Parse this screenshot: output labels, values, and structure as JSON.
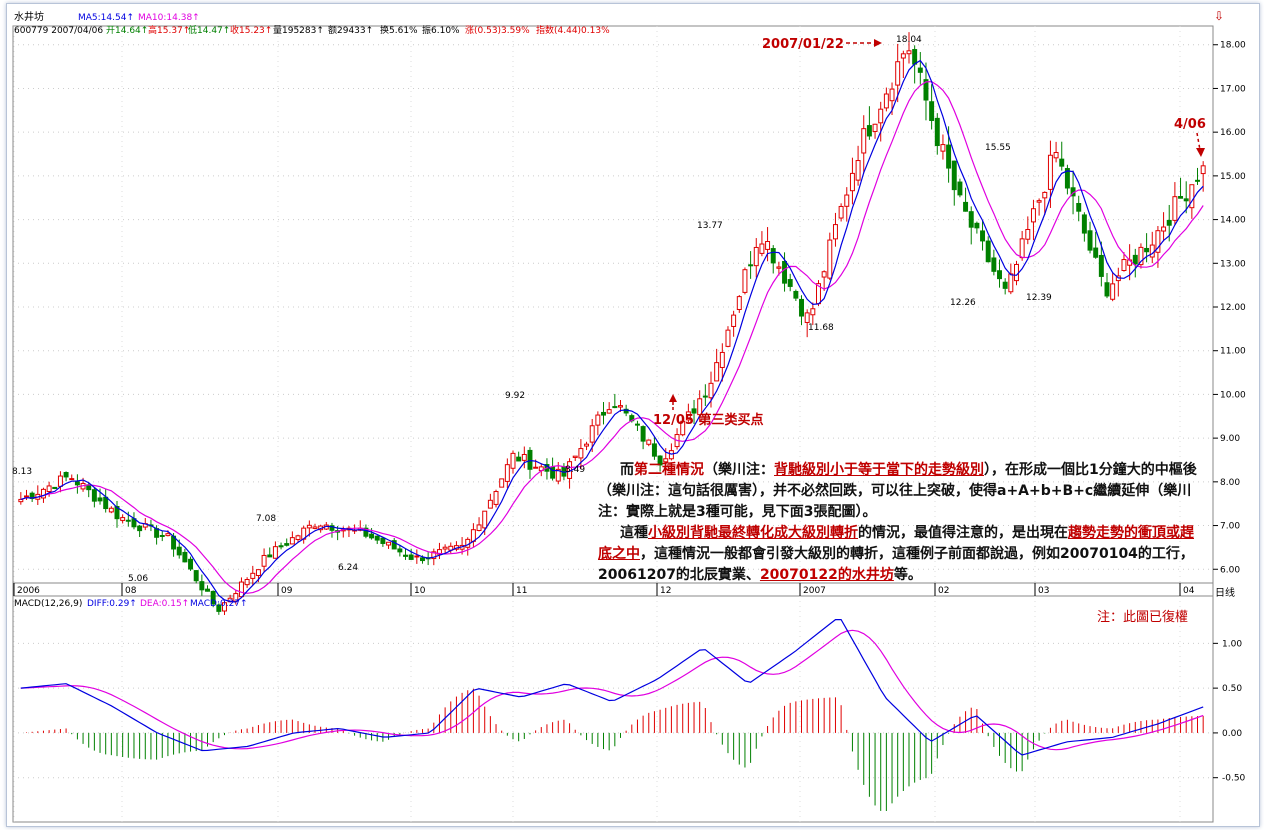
{
  "header": {
    "stock_name": "水井坊",
    "ma5": "MA5:14.54↑",
    "ma10": "MA10:14.38↑",
    "code_date": "600779 2007/04/06",
    "open": "开14.64↑",
    "high": "高15.37↑",
    "low": "低14.47↑",
    "close": "收15.23↑",
    "volume": "量195283↑",
    "amount": "额29433↑",
    "turnover": "换5.61%",
    "amplitude": "振6.10%",
    "change": "涨(0.53)3.59%",
    "index": "指数(4.44)0.13%"
  },
  "macd_header": {
    "macd_label": "MACD(12,26,9)",
    "diff": "DIFF:0.29↑",
    "dea": "DEA:0.15↑",
    "macd": "MACD:0.27↑"
  },
  "annotations": {
    "peak_date": "2007/01/22",
    "peak_value": "18.04",
    "last_date": "4/06",
    "buy_point": "12/05 第三类买点",
    "note": "注：此圖已復權",
    "period": "日线"
  },
  "text_block": {
    "l1a": "而",
    "l1b": "第二種情況",
    "l1c": "（樂川注：",
    "l1d": "背馳級別小于等于當下的走勢級別",
    "l1e": "），在形成一個比1分鐘大的中樞後",
    "l2": "（樂川注：這句話很厲害），并不必然回跌，可以往上突破，使得a+A+b+B+c繼續延伸（樂川",
    "l3": "注：實際上就是3種可能，見下面3張配圖）。",
    "l4a": "這種",
    "l4b": "小級別背馳最終轉化成大級別轉折",
    "l4c": "的情況，最值得注意的，是出現在",
    "l4d": "趨勢走勢的衝頂或趕",
    "l5a": "底之中",
    "l5b": "，這種情況一般都會引發大級別的轉折，這種例子前面都說過，例如20070104的工行，",
    "l6a": "20061207的北辰實業、",
    "l6b": "20070122的水井坊",
    "l6c": "等。"
  },
  "colors": {
    "up": "#e00000",
    "down": "#008000",
    "ma5": "#0000e0",
    "ma10": "#e000e0",
    "dea": "#e000e0",
    "diff": "#0000e0",
    "annotation": "#c00000"
  },
  "chart_data": [
    {
      "type": "candlestick",
      "title": "",
      "y_ticks": [
        "18.00",
        "17.00",
        "16.00",
        "15.00",
        "14.00",
        "13.00",
        "12.00",
        "11.00",
        "10.00",
        "9.00",
        "8.00",
        "7.00",
        "6.00"
      ],
      "ylim": [
        5.8,
        18.2
      ],
      "x_ticks": [
        "2006",
        "08",
        "09",
        "10",
        "11",
        "12",
        "2007",
        "02",
        "03",
        "04"
      ],
      "price_labels": [
        "8.13",
        "5.06",
        "7.08",
        "6.24",
        "9.92",
        "8.49",
        "13.77",
        "11.68",
        "18.04",
        "15.55",
        "12.26",
        "12.39"
      ],
      "anchors": [
        {
          "date": "2006-06",
          "value": 7.6
        },
        {
          "date": "2006-06",
          "value": 8.13
        },
        {
          "date": "2006-07",
          "value": 7.2
        },
        {
          "date": "2006-07",
          "value": 6.7
        },
        {
          "date": "2006-08",
          "value": 5.06
        },
        {
          "date": "2006-08",
          "value": 6.3
        },
        {
          "date": "2006-09",
          "value": 7.08
        },
        {
          "date": "2006-09",
          "value": 6.8
        },
        {
          "date": "2006-09",
          "value": 6.24
        },
        {
          "date": "2006-10",
          "value": 6.5
        },
        {
          "date": "2006-10",
          "value": 8.6
        },
        {
          "date": "2006-10",
          "value": 8.1
        },
        {
          "date": "2006-11",
          "value": 9.92
        },
        {
          "date": "2006-11",
          "value": 8.49
        },
        {
          "date": "2006-12",
          "value": 10.3
        },
        {
          "date": "2006-12",
          "value": 13.77
        },
        {
          "date": "2006-12",
          "value": 11.68
        },
        {
          "date": "2007-01",
          "value": 15.6
        },
        {
          "date": "2007-01-22",
          "value": 18.04
        },
        {
          "date": "2007-02",
          "value": 14.5
        },
        {
          "date": "2007-02",
          "value": 12.26
        },
        {
          "date": "2007-02",
          "value": 15.55
        },
        {
          "date": "2007-03",
          "value": 12.39
        },
        {
          "date": "2007-03",
          "value": 13.6
        },
        {
          "date": "2007-04-06",
          "value": 15.23
        }
      ],
      "series": [
        {
          "name": "MA5",
          "value": 14.54
        },
        {
          "name": "MA10",
          "value": 14.38
        }
      ]
    },
    {
      "type": "bar",
      "title": "MACD(12,26,9)",
      "y_ticks": [
        "1.00",
        "0.50",
        "0.00",
        "-0.50"
      ],
      "ylim": [
        -0.95,
        1.35
      ],
      "series": [
        {
          "name": "DIFF",
          "value": 0.29
        },
        {
          "name": "DEA",
          "value": 0.15
        },
        {
          "name": "MACD",
          "value": 0.27
        }
      ],
      "anchors_diff": [
        0.5,
        0.55,
        0.3,
        0.0,
        -0.2,
        -0.15,
        0.0,
        0.05,
        -0.05,
        0.0,
        0.5,
        0.4,
        0.55,
        0.35,
        0.6,
        0.95,
        0.55,
        0.9,
        1.3,
        0.4,
        -0.1,
        0.2,
        -0.25,
        -0.1,
        -0.05,
        0.1,
        0.29
      ]
    }
  ]
}
